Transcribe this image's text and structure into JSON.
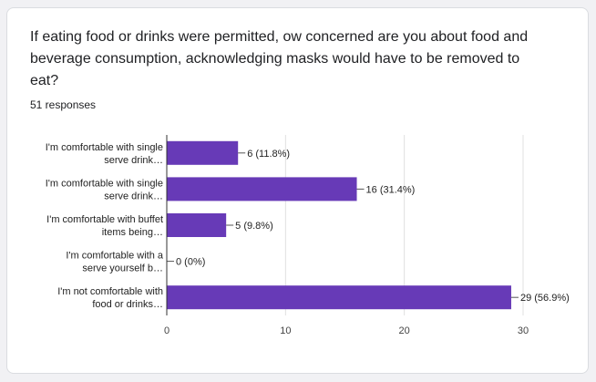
{
  "question": {
    "title": "If eating food or drinks were permitted, ow concerned are you about food and beverage consumption, acknowledging masks would have to be removed to eat?",
    "responses": "51 responses"
  },
  "colors": {
    "bar": "#673ab7",
    "grid": "#e0e0e0",
    "axis": "#333333"
  },
  "chart_data": {
    "type": "bar",
    "orientation": "horizontal",
    "categories": [
      [
        "I'm comfortable with single",
        "serve drink…"
      ],
      [
        "I'm comfortable with single",
        "serve drink…"
      ],
      [
        "I'm comfortable with buffet",
        "items being…"
      ],
      [
        "I'm comfortable with a",
        "serve yourself b…"
      ],
      [
        "I'm not comfortable with",
        "food or drinks…"
      ]
    ],
    "values": [
      6,
      16,
      5,
      0,
      29
    ],
    "value_labels": [
      "6 (11.8%)",
      "16 (31.4%)",
      "5 (9.8%)",
      "0 (0%)",
      "29 (56.9%)"
    ],
    "xlim": [
      0,
      30
    ],
    "xticks": [
      0,
      10,
      20,
      30
    ],
    "grid": true
  }
}
